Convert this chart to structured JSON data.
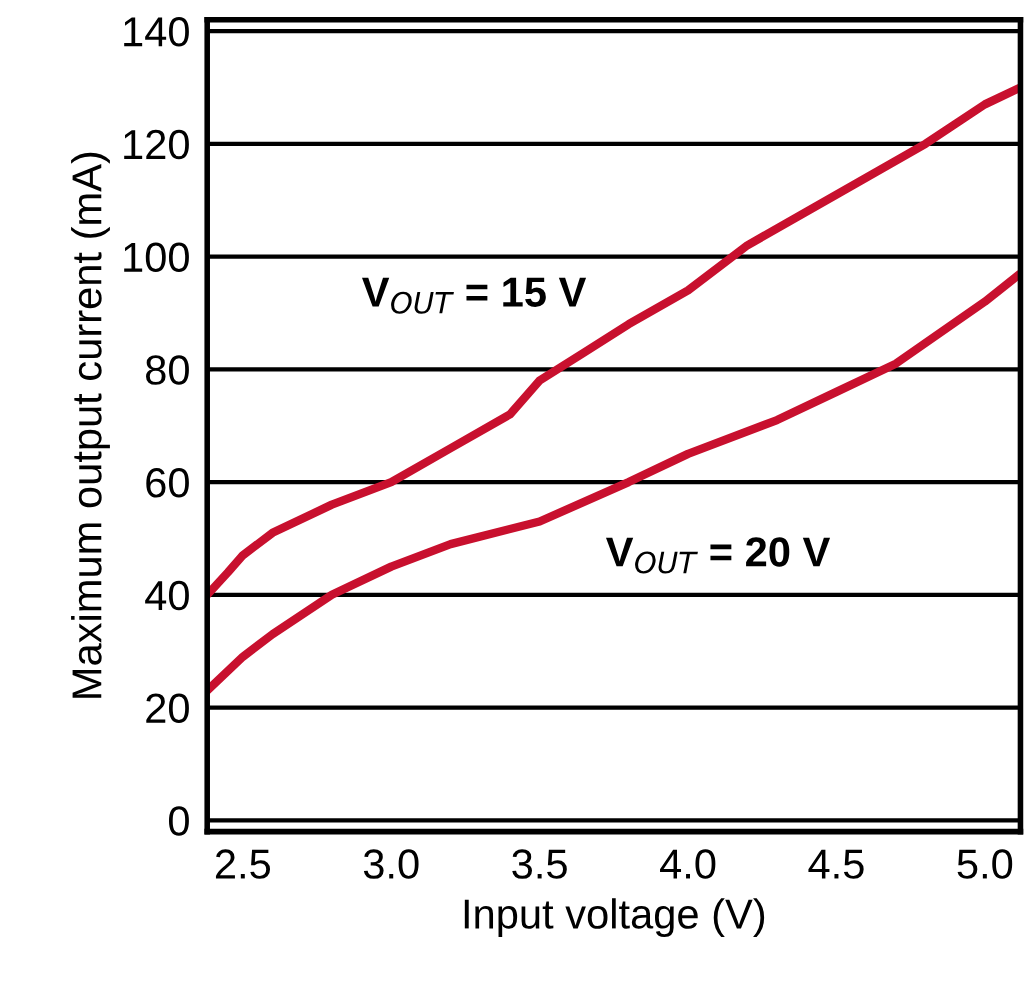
{
  "chart_data": {
    "type": "line",
    "xlabel": "Input voltage (V)",
    "ylabel": "Maximum output current (mA)",
    "xlim": [
      2.38,
      5.12
    ],
    "ylim": [
      -2,
      142
    ],
    "xticks": [
      {
        "value": 2.5,
        "label": "2.5"
      },
      {
        "value": 3.0,
        "label": "3.0"
      },
      {
        "value": 3.5,
        "label": "3.5"
      },
      {
        "value": 4.0,
        "label": "4.0"
      },
      {
        "value": 4.5,
        "label": "4.5"
      },
      {
        "value": 5.0,
        "label": "5.0"
      }
    ],
    "yticks": [
      0,
      20,
      40,
      60,
      80,
      100,
      120,
      140
    ],
    "grid": "y",
    "marker": "none",
    "line_style": "solid",
    "series": [
      {
        "name": "V$_{OUT}$ = 15 V",
        "color": "#c8102e",
        "x": [
          2.38,
          2.45,
          2.5,
          2.6,
          2.8,
          3.0,
          3.2,
          3.4,
          3.45,
          3.5,
          3.65,
          3.8,
          4.0,
          4.2,
          4.5,
          4.8,
          5.0,
          5.12
        ],
        "values": [
          40,
          44,
          47,
          51,
          56,
          60,
          66,
          72,
          75,
          78,
          83,
          88,
          94,
          102,
          111,
          120,
          127,
          130
        ]
      },
      {
        "name": "V$_{OUT}$ = 20 V",
        "color": "#c8102e",
        "x": [
          2.38,
          2.5,
          2.6,
          2.8,
          3.0,
          3.2,
          3.5,
          3.8,
          4.0,
          4.3,
          4.5,
          4.7,
          5.0,
          5.12
        ],
        "values": [
          23,
          29,
          33,
          40,
          45,
          49,
          53,
          60,
          65,
          71,
          76,
          81,
          92,
          97
        ]
      }
    ]
  }
}
